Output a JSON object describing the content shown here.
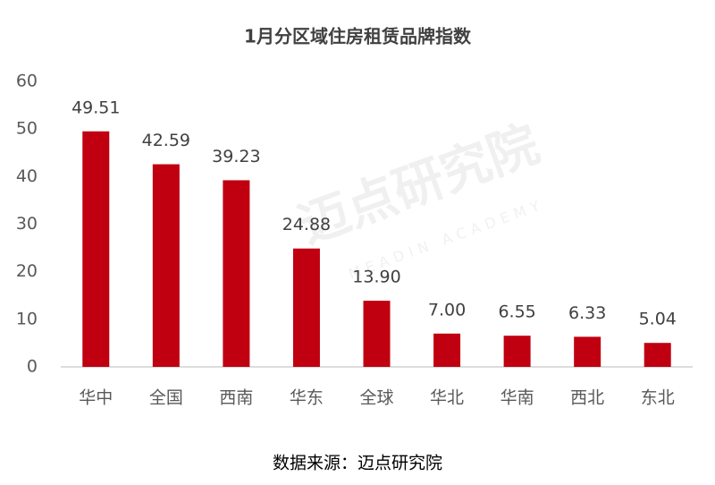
{
  "chart_data": {
    "type": "bar",
    "title": "1月分区域住房租赁品牌指数",
    "categories": [
      "华中",
      "全国",
      "西南",
      "华东",
      "全球",
      "华北",
      "华南",
      "西北",
      "东北"
    ],
    "values": [
      49.51,
      42.59,
      39.23,
      24.88,
      13.9,
      7,
      6.55,
      6.33,
      5.04
    ],
    "value_labels": [
      "49.51",
      "42.59",
      "39.23",
      "24.88",
      "13.90",
      "7.00",
      "6.55",
      "6.33",
      "5.04"
    ],
    "color": "#c00010",
    "ylim": [
      0,
      60
    ],
    "yticks": [
      0,
      10,
      20,
      30,
      40,
      50,
      60
    ],
    "grid": false,
    "source": "数据来源：迈点研究院",
    "watermark": "迈点研究院",
    "watermark_sub": "MEADIN ACADEMY"
  }
}
